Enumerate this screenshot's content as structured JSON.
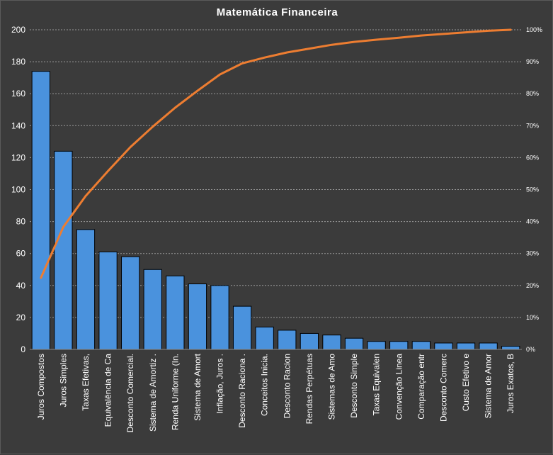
{
  "chart_data": {
    "type": "bar",
    "title": "Matemática  Financeira",
    "categories": [
      "Juros Compostos",
      "Juros Simples",
      "Taxas Efetivas,",
      "Equivalência de Ca",
      "Desconto Comercial.",
      "Sistema de Amortiz .",
      "Renda Uniforme (In.",
      "Sistema de Amort",
      "Inflação, Juros .",
      "Desconto Raciona .",
      "Conceitos Inicia.",
      "Desconto Racion",
      "Rendas Perpétuas",
      "Sistemas de Amo",
      "Desconto Simple",
      "Taxas Equivalen",
      "Convenção Linea",
      "Comparação entr",
      "Desconto Comerc",
      "Custo Efetivo e",
      "Sistema de Amor",
      "Juros Exatos, B"
    ],
    "series": [
      {
        "type": "bar",
        "axis": "left",
        "values": [
          174,
          124,
          75,
          61,
          58,
          50,
          46,
          41,
          40,
          27,
          14,
          12,
          10,
          9,
          7,
          5,
          5,
          5,
          4,
          4,
          4,
          2
        ]
      },
      {
        "type": "line",
        "axis": "right",
        "values": [
          22.4,
          38.3,
          48.0,
          55.8,
          63.3,
          69.7,
          75.6,
          80.9,
          86.0,
          89.5,
          91.3,
          92.9,
          94.1,
          95.3,
          96.2,
          96.9,
          97.5,
          98.2,
          98.7,
          99.2,
          99.7,
          100
        ]
      }
    ],
    "y_left": {
      "min": 0,
      "max": 200,
      "ticks": [
        "0",
        "20",
        "40",
        "60",
        "80",
        "100",
        "120",
        "140",
        "160",
        "180",
        "200"
      ]
    },
    "y_right": {
      "min": 0,
      "max": 100,
      "ticks": [
        "0%",
        "10%",
        "20%",
        "30%",
        "40%",
        "50%",
        "60%",
        "70%",
        "80%",
        "90%",
        "100%"
      ]
    },
    "grid": "horizontal-dashed",
    "colors": {
      "bar": "#4a92dd",
      "bar_edge": "#000000",
      "line": "#ed7d31",
      "text": "#ffffff",
      "background": "#3b3b3b",
      "grid": "#9a9a9a"
    }
  }
}
